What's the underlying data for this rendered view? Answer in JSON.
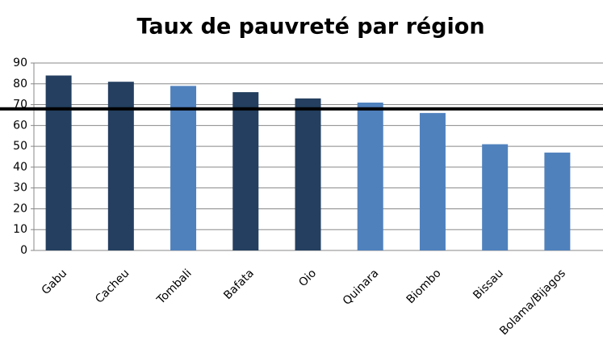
{
  "chart_data": {
    "type": "bar",
    "title": "Taux de pauvreté par région",
    "categories": [
      "Gabu",
      "Cacheu",
      "Tombali",
      "Bafata",
      "Oio",
      "Quinara",
      "Biombo",
      "Bissau",
      "Bolama/Bijagos"
    ],
    "values": [
      84,
      81,
      79,
      76,
      73,
      71,
      66,
      51,
      47
    ],
    "colors": [
      "#243f60",
      "#243f60",
      "#4f81bd",
      "#243f60",
      "#243f60",
      "#4f81bd",
      "#4f81bd",
      "#4f81bd",
      "#4f81bd"
    ],
    "ylim": [
      0,
      90
    ],
    "yticks": [
      0,
      10,
      20,
      30,
      40,
      50,
      60,
      70,
      80,
      90
    ],
    "grid": true,
    "reference_line": 68,
    "reference_line_color": "#000000"
  }
}
